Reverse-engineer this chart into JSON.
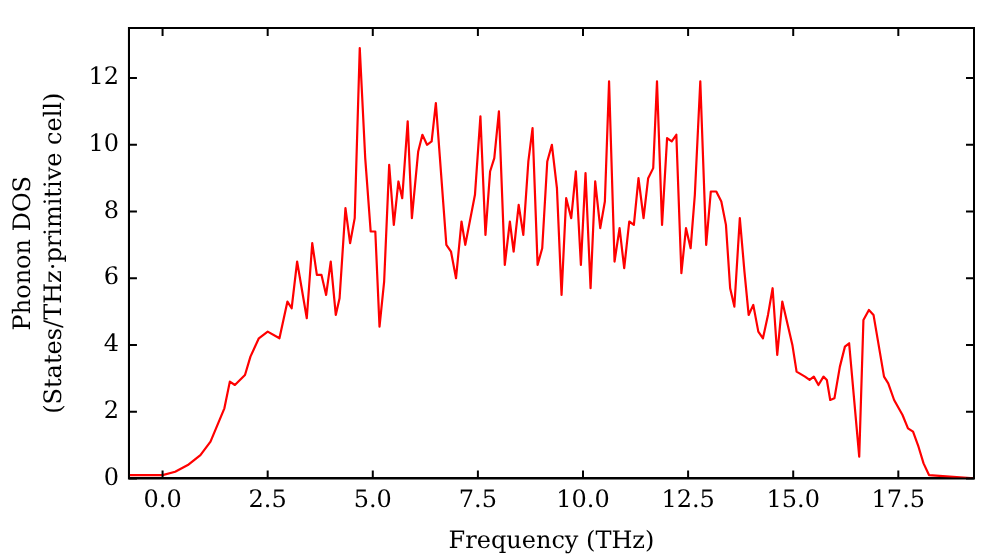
{
  "chart_data": {
    "type": "line",
    "xlabel": "Frequency (THz)",
    "ylabel": "Phonon DOS\n(States/THz·primitive cell)",
    "xlim": [
      -0.8,
      19.3
    ],
    "ylim": [
      0,
      13.5
    ],
    "xticks": [
      {
        "value": 0,
        "label": "0.0"
      },
      {
        "value": 2.5,
        "label": "2.5"
      },
      {
        "value": 5,
        "label": "5.0"
      },
      {
        "value": 7.5,
        "label": "7.5"
      },
      {
        "value": 10,
        "label": "10.0"
      },
      {
        "value": 12.5,
        "label": "12.5"
      },
      {
        "value": 15,
        "label": "15.0"
      },
      {
        "value": 17.5,
        "label": "17.5"
      }
    ],
    "yticks": [
      0,
      2,
      4,
      6,
      8,
      10,
      12
    ],
    "grid": false,
    "legend": false,
    "marker": "none",
    "line_style": "solid",
    "series": [
      {
        "color": "#ff0000",
        "x": [
          -0.8,
          0,
          0.3,
          0.6,
          0.9,
          1.14,
          1.47,
          1.6,
          1.72,
          1.96,
          2.09,
          2.29,
          2.5,
          2.78,
          2.97,
          3.07,
          3.2,
          3.43,
          3.56,
          3.67,
          3.78,
          3.89,
          4.0,
          4.12,
          4.21,
          4.35,
          4.46,
          4.57,
          4.69,
          4.82,
          4.95,
          5.06,
          5.16,
          5.27,
          5.39,
          5.5,
          5.61,
          5.7,
          5.83,
          5.93,
          6.08,
          6.18,
          6.29,
          6.4,
          6.5,
          6.75,
          6.86,
          6.98,
          7.11,
          7.2,
          7.43,
          7.56,
          7.68,
          7.79,
          7.89,
          8.0,
          8.14,
          8.26,
          8.35,
          8.47,
          8.58,
          8.7,
          8.8,
          8.92,
          9.03,
          9.15,
          9.26,
          9.38,
          9.49,
          9.6,
          9.72,
          9.83,
          9.95,
          10.06,
          10.18,
          10.29,
          10.41,
          10.52,
          10.62,
          10.75,
          10.87,
          10.98,
          11.1,
          11.21,
          11.32,
          11.44,
          11.55,
          11.67,
          11.76,
          11.88,
          12.0,
          12.11,
          12.22,
          12.34,
          12.45,
          12.56,
          12.66,
          12.79,
          12.93,
          13.04,
          13.17,
          13.29,
          13.4,
          13.5,
          13.6,
          13.73,
          13.84,
          13.94,
          14.05,
          14.17,
          14.28,
          14.4,
          14.51,
          14.62,
          14.74,
          14.87,
          14.98,
          15.08,
          15.28,
          15.39,
          15.49,
          15.6,
          15.72,
          15.8,
          15.88,
          15.98,
          16.11,
          16.23,
          16.33,
          16.57,
          16.67,
          16.8,
          16.91,
          17.16,
          17.26,
          17.4,
          17.6,
          17.73,
          17.85,
          17.98,
          18.1,
          18.23,
          19.3
        ],
        "values": [
          0.1,
          0.1,
          0.2,
          0.4,
          0.7,
          1.1,
          2.1,
          2.9,
          2.8,
          3.1,
          3.65,
          4.2,
          4.4,
          4.2,
          5.3,
          5.1,
          6.5,
          4.8,
          7.05,
          6.1,
          6.1,
          5.5,
          6.5,
          4.9,
          5.4,
          8.1,
          7.05,
          7.8,
          12.9,
          9.6,
          7.4,
          7.4,
          4.55,
          5.9,
          9.4,
          7.6,
          8.9,
          8.4,
          10.7,
          7.8,
          9.8,
          10.3,
          10.0,
          10.1,
          11.25,
          7.0,
          6.8,
          6.0,
          7.7,
          7.0,
          8.5,
          10.85,
          7.3,
          9.2,
          9.6,
          11.0,
          6.4,
          7.7,
          6.8,
          8.2,
          7.3,
          9.5,
          10.5,
          6.4,
          6.9,
          9.5,
          10.0,
          8.7,
          5.5,
          8.4,
          7.8,
          9.2,
          6.4,
          9.15,
          5.7,
          8.9,
          7.5,
          8.3,
          11.9,
          6.5,
          7.5,
          6.3,
          7.7,
          7.6,
          9.0,
          7.8,
          9.0,
          9.3,
          11.9,
          7.6,
          10.2,
          10.1,
          10.3,
          6.15,
          7.5,
          6.9,
          8.5,
          11.9,
          7.0,
          8.6,
          8.6,
          8.3,
          7.6,
          5.7,
          5.15,
          7.8,
          6.2,
          4.9,
          5.2,
          4.4,
          4.2,
          4.9,
          5.7,
          3.7,
          5.3,
          4.6,
          4.0,
          3.2,
          3.05,
          2.95,
          3.05,
          2.8,
          3.05,
          2.95,
          2.35,
          2.4,
          3.35,
          3.95,
          4.05,
          0.65,
          4.75,
          5.05,
          4.9,
          3.05,
          2.85,
          2.35,
          1.9,
          1.5,
          1.4,
          0.95,
          0.45,
          0.1,
          0
        ]
      }
    ]
  }
}
